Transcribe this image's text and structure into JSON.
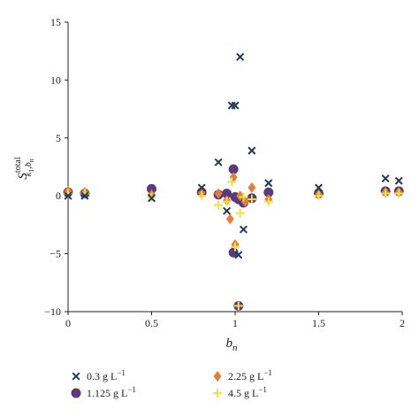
{
  "chart_data": {
    "type": "scatter",
    "xlim": [
      0,
      2
    ],
    "ylim": [
      -10,
      15
    ],
    "x_ticks": [
      {
        "value": 0,
        "label": "0"
      },
      {
        "value": 0.5,
        "label": "0.5"
      },
      {
        "value": 1,
        "label": "1"
      },
      {
        "value": 1.5,
        "label": "1.5"
      },
      {
        "value": 2,
        "label": "2"
      }
    ],
    "y_ticks": [
      {
        "value": -10,
        "label": "−10"
      },
      {
        "value": -5,
        "label": "−5"
      },
      {
        "value": 0,
        "label": "0"
      },
      {
        "value": 5,
        "label": "5"
      },
      {
        "value": 10,
        "label": "10"
      },
      {
        "value": 15,
        "label": "15"
      }
    ],
    "xlabel": "b",
    "xlabel_sub": "n",
    "ylabel_main": "S",
    "ylabel_sup": "total",
    "ylabel_sub": "k",
    "ylabel_sub_sub": "1",
    "ylabel_sub_tail": ",b",
    "ylabel_sub_tail_sub": "n",
    "grid": false,
    "legend_position": "bottom",
    "series": [
      {
        "name": "0.3 g L",
        "name_sup": "−1",
        "marker": "x",
        "color": "#1f3b57",
        "points": [
          {
            "x": 0,
            "y": 0
          },
          {
            "x": 0.1,
            "y": 0
          },
          {
            "x": 0.5,
            "y": -0.2
          },
          {
            "x": 0.8,
            "y": 0.7
          },
          {
            "x": 0.9,
            "y": 2.9
          },
          {
            "x": 0.95,
            "y": -1.3
          },
          {
            "x": 0.98,
            "y": 7.8
          },
          {
            "x": 1.0,
            "y": 7.8
          },
          {
            "x": 1.03,
            "y": 12.0
          },
          {
            "x": 1.05,
            "y": -2.9
          },
          {
            "x": 1.02,
            "y": -5.1
          },
          {
            "x": 1.1,
            "y": 3.9
          },
          {
            "x": 1.2,
            "y": 1.1
          },
          {
            "x": 1.5,
            "y": 0.7
          },
          {
            "x": 1.9,
            "y": 1.5
          },
          {
            "x": 1.98,
            "y": 1.3
          }
        ]
      },
      {
        "name": "1.125 g L",
        "name_sup": "−1",
        "marker": "circle",
        "color": "#5a3a7a",
        "points": [
          {
            "x": 0,
            "y": 0.3
          },
          {
            "x": 0.1,
            "y": 0.2
          },
          {
            "x": 0.5,
            "y": 0.6
          },
          {
            "x": 0.8,
            "y": 0.3
          },
          {
            "x": 0.9,
            "y": 0.1
          },
          {
            "x": 0.95,
            "y": 0.2
          },
          {
            "x": 0.99,
            "y": 2.3
          },
          {
            "x": 1.0,
            "y": -0.1
          },
          {
            "x": 1.02,
            "y": -0.3
          },
          {
            "x": 1.05,
            "y": -0.6
          },
          {
            "x": 0.99,
            "y": -4.9
          },
          {
            "x": 1.02,
            "y": -9.5
          },
          {
            "x": 1.1,
            "y": -0.2
          },
          {
            "x": 1.2,
            "y": 0.3
          },
          {
            "x": 1.5,
            "y": 0.2
          },
          {
            "x": 1.9,
            "y": 0.4
          },
          {
            "x": 1.98,
            "y": 0.4
          }
        ]
      },
      {
        "name": "2.25 g L",
        "name_sup": "−1",
        "marker": "diamond",
        "color": "#e0803a",
        "points": [
          {
            "x": 0,
            "y": 0.4
          },
          {
            "x": 0.1,
            "y": 0.3
          },
          {
            "x": 0.5,
            "y": 0.1
          },
          {
            "x": 0.8,
            "y": 0.3
          },
          {
            "x": 0.9,
            "y": 0.2
          },
          {
            "x": 0.95,
            "y": -0.4
          },
          {
            "x": 0.97,
            "y": -2.0
          },
          {
            "x": 0.99,
            "y": 1.6
          },
          {
            "x": 1.0,
            "y": -4.2
          },
          {
            "x": 1.03,
            "y": 0.0
          },
          {
            "x": 1.06,
            "y": -0.5
          },
          {
            "x": 1.1,
            "y": 0.7
          },
          {
            "x": 1.2,
            "y": -0.3
          },
          {
            "x": 1.5,
            "y": 0.1
          },
          {
            "x": 1.9,
            "y": 0.3
          },
          {
            "x": 1.98,
            "y": 0.3
          }
        ]
      },
      {
        "name": "4.5 g L",
        "name_sup": "−1",
        "marker": "plus",
        "color": "#f2e04a",
        "points": [
          {
            "x": 0,
            "y": 0.2
          },
          {
            "x": 0.1,
            "y": 0.2
          },
          {
            "x": 0.5,
            "y": -0.1
          },
          {
            "x": 0.8,
            "y": 0.0
          },
          {
            "x": 0.9,
            "y": -0.8
          },
          {
            "x": 0.95,
            "y": -0.5
          },
          {
            "x": 0.98,
            "y": 1.2
          },
          {
            "x": 1.0,
            "y": -4.4
          },
          {
            "x": 1.03,
            "y": -1.5
          },
          {
            "x": 1.05,
            "y": -0.1
          },
          {
            "x": 1.02,
            "y": -9.5
          },
          {
            "x": 1.1,
            "y": -0.3
          },
          {
            "x": 1.2,
            "y": -0.5
          },
          {
            "x": 1.5,
            "y": 0.0
          },
          {
            "x": 1.9,
            "y": 0.2
          },
          {
            "x": 1.98,
            "y": 0.2
          }
        ]
      }
    ]
  }
}
